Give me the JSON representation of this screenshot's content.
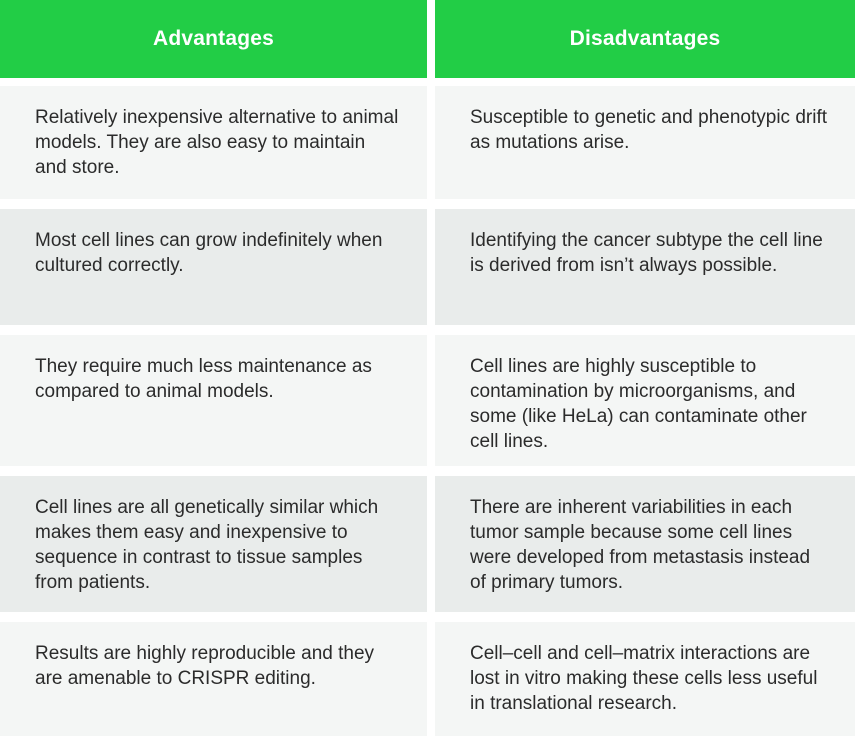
{
  "table": {
    "headers": [
      {
        "label": "Advantages"
      },
      {
        "label": "Disadvantages"
      }
    ],
    "rows": [
      {
        "advantage": "Relatively inexpensive alternative to animal models. They are also easy to maintain and store.",
        "disadvantage": "Susceptible to genetic and phenotypic drift as mutations arise."
      },
      {
        "advantage": "Most cell lines can grow indefinitely when cultured correctly.",
        "disadvantage": "Identifying the cancer subtype the cell line is derived from isn’t always possible."
      },
      {
        "advantage": "They require much less maintenance as compared to animal models.",
        "disadvantage": "Cell lines are highly susceptible to contamination by microorganisms, and some (like HeLa) can contaminate other cell lines."
      },
      {
        "advantage": "Cell lines are all genetically similar which makes them easy and inexpensive to sequence in contrast to tissue samples from patients.",
        "disadvantage": "There are inherent variabilities in each tumor sample because some cell lines were developed from metastasis instead of primary tumors."
      },
      {
        "advantage": "Results are highly reproducible and they are amenable to CRISPR editing.",
        "disadvantage": "Cell–cell and cell–matrix interactions are lost in vitro making these cells less useful in translational research."
      }
    ],
    "colors": {
      "header_bg": "#22cd46",
      "header_text": "#ffffff",
      "row_light": "#f4f6f5",
      "row_dark": "#e9eceb",
      "body_text": "#2b2b2b",
      "gap": "#ffffff"
    }
  }
}
